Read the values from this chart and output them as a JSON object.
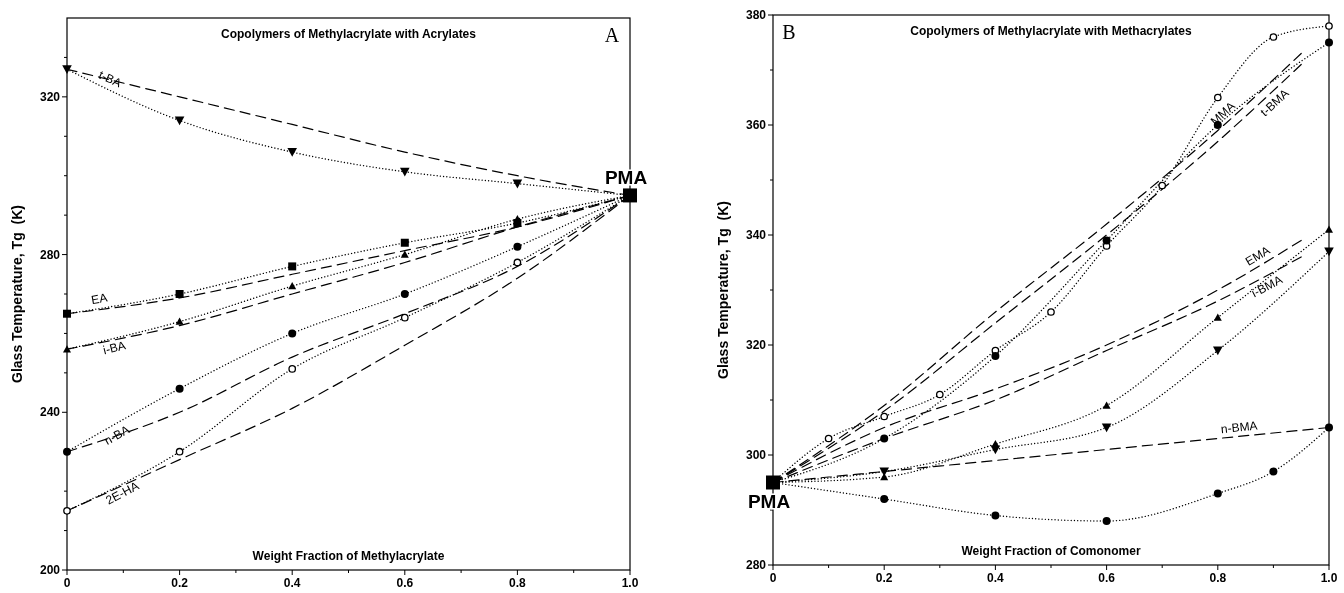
{
  "chart_data": [
    {
      "type": "line",
      "title": "Copolymers of Methylacrylate with Acrylates",
      "xlabel": "Weight Fraction of Methylacrylate",
      "ylabel": "Glass Temperature, Tg  (K)",
      "annotations": [
        "A"
      ],
      "xlim": [
        0,
        1
      ],
      "ylim": [
        200,
        340
      ],
      "xticks": [
        0,
        {
          "value": 0.1,
          "label": null
        },
        0.2,
        {
          "value": 0.3,
          "label": null
        },
        0.4,
        {
          "value": 0.5,
          "label": null
        },
        0.6,
        {
          "value": 0.7,
          "label": null
        },
        0.8,
        {
          "value": 0.9,
          "label": null
        },
        {
          "value": 1,
          "label": "1.0"
        }
      ],
      "yticks": [
        200,
        {
          "value": 210,
          "label": null
        },
        {
          "value": 220,
          "label": null
        },
        {
          "value": 230,
          "label": null
        },
        240,
        {
          "value": 250,
          "label": null
        },
        {
          "value": 260,
          "label": null
        },
        {
          "value": 270,
          "label": null
        },
        280,
        {
          "value": 290,
          "label": null
        },
        {
          "value": 300,
          "label": null
        },
        {
          "value": 310,
          "label": null
        },
        320,
        {
          "value": 330,
          "label": null
        }
      ],
      "series": [
        {
          "name": "t-BA",
          "color": "#000000",
          "x": [
            0,
            0.2,
            0.4,
            0.6,
            0.8,
            1
          ],
          "values": [
            327,
            314,
            306,
            301,
            298,
            295
          ],
          "marker": "triangle-down",
          "line_style": "dotted"
        },
        {
          "color": "#000000",
          "x": [
            0,
            0.2,
            0.4,
            0.6,
            0.8,
            1
          ],
          "values": [
            327,
            320,
            313,
            306,
            300,
            295
          ],
          "marker": "none",
          "line_style": "dashed"
        },
        {
          "name": "EA",
          "color": "#000000",
          "x": [
            0,
            0.2,
            0.4,
            0.6,
            0.8,
            1
          ],
          "values": [
            265,
            270,
            277,
            283,
            288,
            295
          ],
          "marker": "square",
          "line_style": "dotted"
        },
        {
          "color": "#000000",
          "x": [
            0,
            0.2,
            0.4,
            0.6,
            0.8,
            1
          ],
          "values": [
            265,
            269,
            275,
            281,
            287,
            295
          ],
          "marker": "none",
          "line_style": "dashed"
        },
        {
          "name": "i-BA",
          "color": "#000000",
          "x": [
            0,
            0.2,
            0.4,
            0.6,
            0.8,
            1
          ],
          "values": [
            256,
            263,
            272,
            280,
            289,
            295
          ],
          "marker": "triangle",
          "line_style": "dotted"
        },
        {
          "color": "#000000",
          "x": [
            0,
            0.2,
            0.4,
            0.6,
            0.8,
            1
          ],
          "values": [
            256,
            262,
            270,
            278,
            287,
            295
          ],
          "marker": "none",
          "line_style": "dashed"
        },
        {
          "name": "n-BA",
          "color": "#000000",
          "x": [
            0,
            0.2,
            0.4,
            0.6,
            0.8,
            1
          ],
          "values": [
            230,
            246,
            260,
            270,
            282,
            295
          ],
          "marker": "circle",
          "line_style": "dotted"
        },
        {
          "color": "#000000",
          "x": [
            0,
            0.2,
            0.4,
            0.6,
            0.8,
            1
          ],
          "values": [
            230,
            240,
            254,
            265,
            277,
            295
          ],
          "marker": "none",
          "line_style": "dashed"
        },
        {
          "name": "2E-HA",
          "color": "#000000",
          "x": [
            0,
            0.2,
            0.4,
            0.6,
            0.8,
            1
          ],
          "values": [
            215,
            230,
            251,
            264,
            278,
            295
          ],
          "marker": "open-circle",
          "line_style": "dotted"
        },
        {
          "color": "#000000",
          "x": [
            0,
            0.2,
            0.4,
            0.6,
            0.8,
            1
          ],
          "values": [
            215,
            228,
            241,
            257,
            274,
            295
          ],
          "marker": "none",
          "line_style": "dashed"
        },
        {
          "name": "PMA",
          "type": "scatter",
          "color": "#000000",
          "x": [
            1
          ],
          "values": [
            295
          ],
          "marker": "square"
        }
      ]
    },
    {
      "type": "line",
      "title": "Copolymers of Methylacrylate with Methacrylates",
      "xlabel": "Weight Fraction of Comonomer",
      "ylabel": "Glass Temperature, Tg  (K)",
      "annotations": [
        "B"
      ],
      "xlim": [
        0,
        1
      ],
      "ylim": [
        280,
        380
      ],
      "xticks": [
        0,
        {
          "value": 0.1,
          "label": null
        },
        0.2,
        {
          "value": 0.3,
          "label": null
        },
        0.4,
        {
          "value": 0.5,
          "label": null
        },
        0.6,
        {
          "value": 0.7,
          "label": null
        },
        0.8,
        {
          "value": 0.9,
          "label": null
        },
        {
          "value": 1,
          "label": "1.0"
        }
      ],
      "yticks": [
        280,
        {
          "value": 290,
          "label": null
        },
        300,
        {
          "value": 310,
          "label": null
        },
        320,
        {
          "value": 330,
          "label": null
        },
        340,
        {
          "value": 350,
          "label": null
        },
        360,
        {
          "value": 370,
          "label": null
        },
        380
      ],
      "series": [
        {
          "color": "#000000",
          "x": [
            0,
            0.1,
            0.2,
            0.3,
            0.4,
            0.5,
            0.6,
            0.7,
            0.8,
            0.9,
            1
          ],
          "values": [
            295,
            303,
            307,
            311,
            319,
            326,
            338,
            349,
            365,
            376,
            378
          ],
          "marker": "open-circle",
          "line_style": "dotted"
        },
        {
          "color": "#000000",
          "x": [
            0,
            0.2,
            0.4,
            0.6,
            0.8,
            1
          ],
          "values": [
            295,
            303,
            318,
            339,
            360,
            375
          ],
          "marker": "circle",
          "line_style": "dotted"
        },
        {
          "name": "MMA",
          "color": "#000000",
          "x": [
            0,
            0.2,
            0.4,
            0.6,
            0.8,
            0.95
          ],
          "values": [
            295,
            309,
            326,
            342,
            359,
            373
          ],
          "marker": "none",
          "line_style": "dashed"
        },
        {
          "name": "t-BMA",
          "color": "#000000",
          "x": [
            0,
            0.2,
            0.4,
            0.6,
            0.8,
            0.95
          ],
          "values": [
            295,
            308,
            324,
            340,
            357,
            371
          ],
          "marker": "none",
          "line_style": "dashed"
        },
        {
          "color": "#000000",
          "x": [
            0,
            0.2,
            0.4,
            0.6,
            0.8,
            1
          ],
          "values": [
            295,
            296,
            302,
            309,
            325,
            341
          ],
          "marker": "triangle",
          "line_style": "dotted"
        },
        {
          "color": "#000000",
          "x": [
            0,
            0.2,
            0.4,
            0.6,
            0.8,
            1
          ],
          "values": [
            295,
            297,
            301,
            305,
            319,
            337
          ],
          "marker": "triangle-down",
          "line_style": "dotted"
        },
        {
          "name": "EMA",
          "color": "#000000",
          "x": [
            0,
            0.2,
            0.4,
            0.6,
            0.8,
            0.95
          ],
          "values": [
            295,
            305,
            312,
            320,
            330,
            339
          ],
          "marker": "none",
          "line_style": "dashed"
        },
        {
          "name": "i-BMA",
          "color": "#000000",
          "x": [
            0,
            0.2,
            0.4,
            0.6,
            0.8,
            0.95
          ],
          "values": [
            295,
            303,
            310,
            319,
            328,
            336
          ],
          "marker": "none",
          "line_style": "dashed"
        },
        {
          "color": "#000000",
          "x": [
            0,
            0.2,
            0.4,
            0.6,
            0.8,
            0.9,
            1
          ],
          "values": [
            295,
            292,
            289,
            288,
            293,
            297,
            305
          ],
          "marker": "circle",
          "line_style": "dotted"
        },
        {
          "name": "n-BMA",
          "color": "#000000",
          "x": [
            0,
            0.2,
            0.4,
            0.6,
            0.8,
            1
          ],
          "values": [
            295,
            297,
            299,
            301,
            303,
            305
          ],
          "marker": "none",
          "line_style": "dashed"
        },
        {
          "name": "PMA",
          "type": "scatter",
          "color": "#000000",
          "x": [
            0
          ],
          "values": [
            295
          ],
          "marker": "square"
        }
      ]
    }
  ]
}
